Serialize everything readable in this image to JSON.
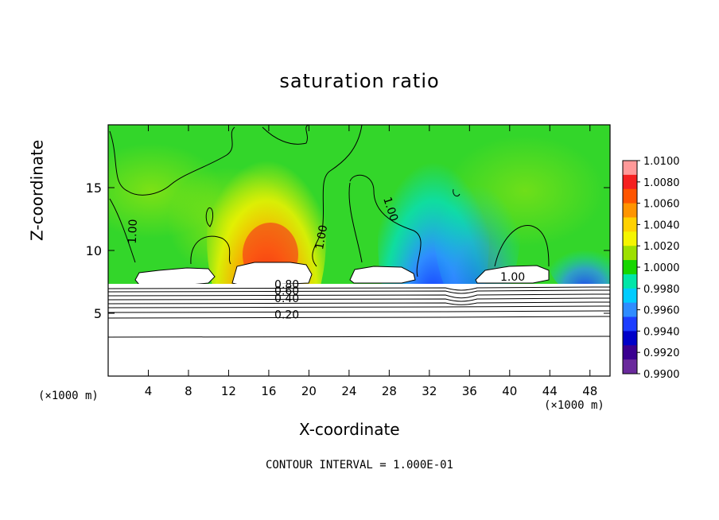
{
  "chart_data": {
    "type": "heatmap",
    "title": "saturation ratio",
    "xlabel": "X-coordinate",
    "ylabel": "Z-coordinate",
    "x_unit_label": "(×1000 m)",
    "footer": "CONTOUR INTERVAL = 1.000E-01",
    "x_range": [
      0,
      50
    ],
    "y_range": [
      0,
      20
    ],
    "x_ticks": [
      4,
      8,
      12,
      16,
      20,
      24,
      28,
      32,
      36,
      40,
      44,
      48
    ],
    "y_ticks": [
      5,
      10,
      15
    ],
    "colorbar": {
      "ticks": [
        "1.0100",
        "1.0080",
        "1.0060",
        "1.0040",
        "1.0020",
        "1.0000",
        "0.9980",
        "0.9960",
        "0.9940",
        "0.9920",
        "0.9900"
      ],
      "colors": [
        "#ff9999",
        "#f52020",
        "#ff5500",
        "#ff9400",
        "#ffd100",
        "#f5f500",
        "#9de000",
        "#17d600",
        "#00e6a8",
        "#00ccff",
        "#2f8cff",
        "#1c3dff",
        "#0000c8",
        "#3a0090",
        "#6a2a9c"
      ]
    },
    "contour_labels": [
      {
        "text": "1.00",
        "x": 2.8,
        "z": 11.5
      },
      {
        "text": "1.00",
        "x": 21.6,
        "z": 11.0
      },
      {
        "text": "1.00",
        "x": 27.8,
        "z": 13.2
      },
      {
        "text": "1.00",
        "x": 40.3,
        "z": 7.6
      },
      {
        "text": "0.80",
        "x": 17.8,
        "z": 7.0
      },
      {
        "text": "0.60",
        "x": 17.8,
        "z": 6.5
      },
      {
        "text": "0.40",
        "x": 17.8,
        "z": 5.9
      },
      {
        "text": "0.20",
        "x": 17.8,
        "z": 4.6
      }
    ],
    "grid": false
  }
}
